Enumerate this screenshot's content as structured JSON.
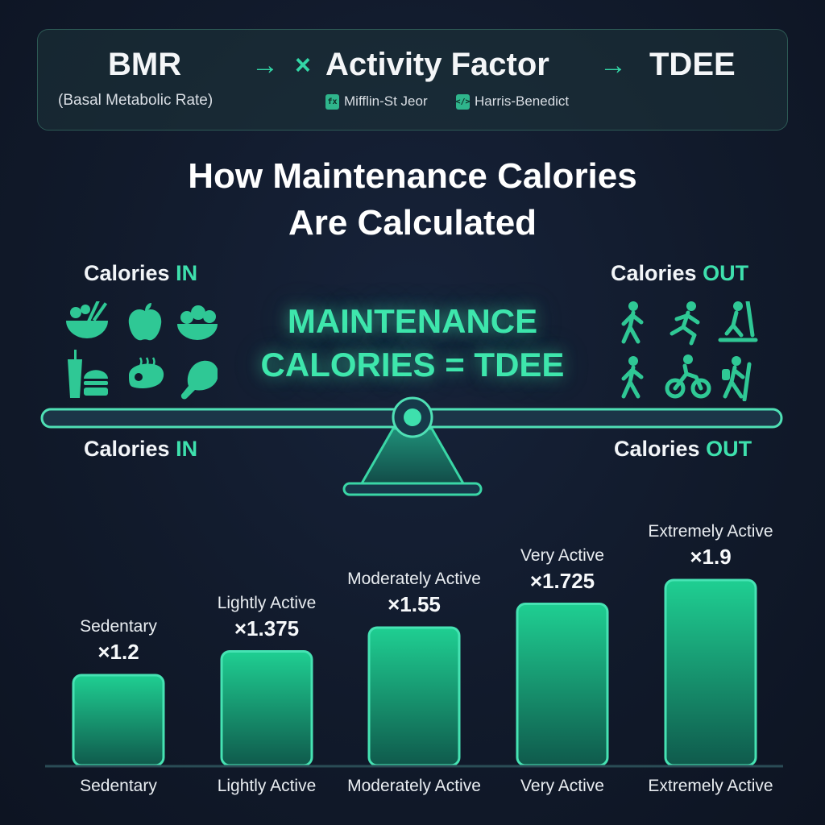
{
  "formula": {
    "bmr": "BMR",
    "bmr_sub": "(Basal Metabolic Rate)",
    "arrow1": "→",
    "times": "×",
    "activity": "Activity Factor",
    "arrow2": "→",
    "tdee": "TDEE",
    "ref1": "Mifflin-St Jeor",
    "ref2": "Harris-Benedict",
    "ref1_icon": "fx-icon",
    "ref2_icon": "code-icon"
  },
  "title": {
    "line1": "How Maintenance Calories",
    "line2": "Are Calculated"
  },
  "balance": {
    "in_label": "Calories",
    "in_accent": "IN",
    "out_label": "Calories",
    "out_accent": "OUT",
    "center_line1": "MAINTENANCE",
    "center_line2": "CALORIES = TDEE",
    "in_icons": [
      "bowl-with-chopsticks-icon",
      "apple-icon",
      "salad-bowl-icon",
      "fast-food-icon",
      "steak-icon",
      "chicken-leg-icon"
    ],
    "out_icons": [
      "walking-person-icon",
      "running-person-icon",
      "treadmill-icon",
      "walking-person-icon",
      "cyclist-icon",
      "hiker-icon"
    ]
  },
  "colors": {
    "accent": "#3ee0ad",
    "bar_top": "#1fcf92",
    "bar_bottom": "#0f5a4c",
    "background": "#111a2b"
  },
  "chart_data": {
    "type": "bar",
    "categories": [
      "Sedentary",
      "Lightly Active",
      "Moderately Active",
      "Very Active",
      "Extremely Active"
    ],
    "values": [
      1.2,
      1.375,
      1.55,
      1.725,
      1.9
    ],
    "value_labels": [
      "×1.2",
      "×1.375",
      "×1.55",
      "×1.725",
      "×1.9"
    ],
    "title": "",
    "xlabel": "",
    "ylabel": ""
  }
}
